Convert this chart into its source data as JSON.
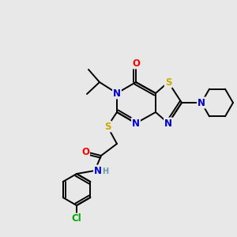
{
  "bg_color": "#e8e8e8",
  "bond_color": "#000000",
  "atom_colors": {
    "N": "#0000cc",
    "S": "#ccaa00",
    "O": "#ff0000",
    "Cl": "#00aa00",
    "C": "#000000",
    "H": "#6699aa"
  },
  "font_size": 8.5,
  "lw": 1.4
}
